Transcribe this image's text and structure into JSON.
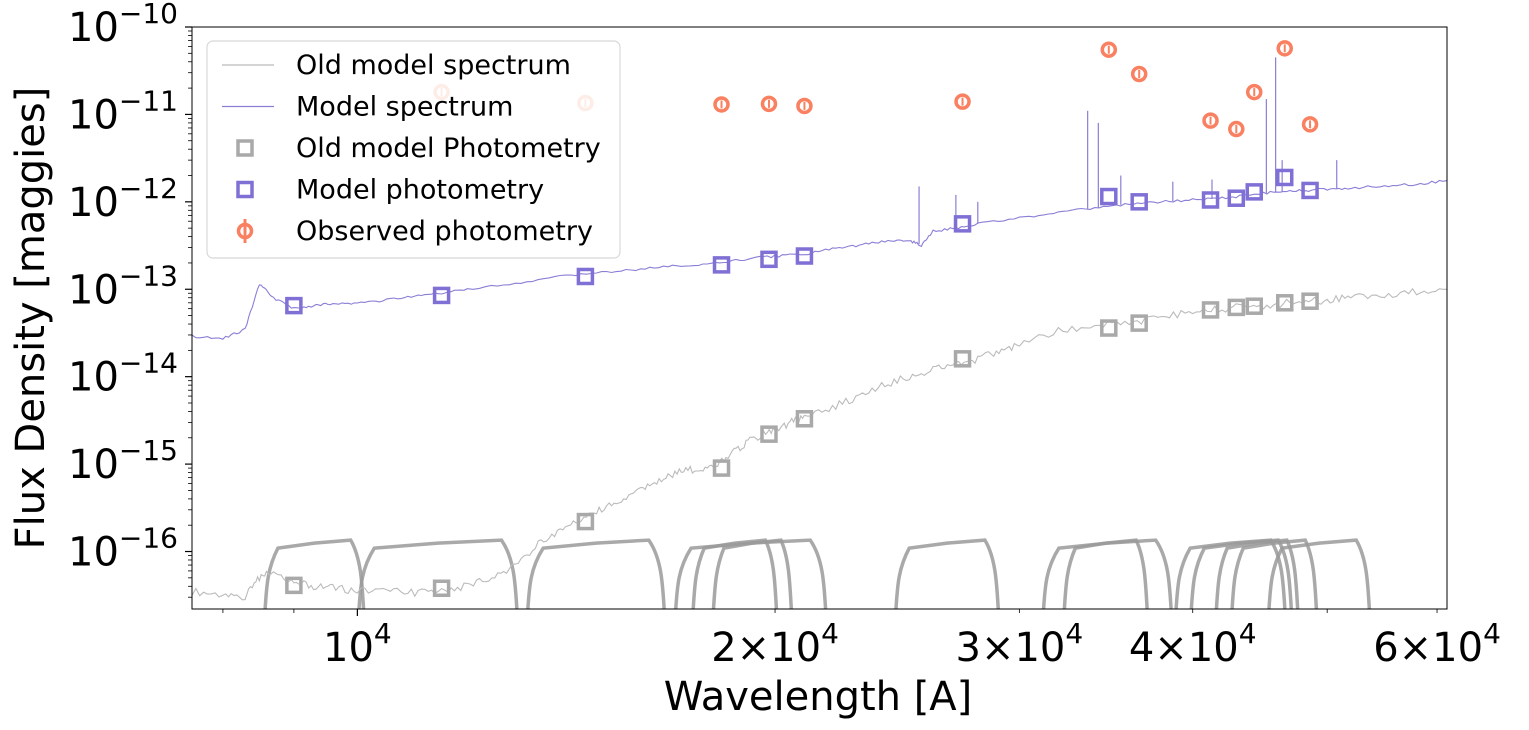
{
  "chart_data": {
    "type": "scatter",
    "xlabel": "Wavelength [A]",
    "ylabel": "Flux Density [maggies]",
    "xscale": "log",
    "yscale": "log",
    "xlim": [
      7600,
      61000
    ],
    "ylim": [
      2.2e-17,
      1e-10
    ],
    "x_ticks": [
      {
        "value": 10000,
        "base": "10",
        "exp": "4",
        "mult": ""
      },
      {
        "value": 20000,
        "base": "10",
        "exp": "4",
        "mult": "2"
      },
      {
        "value": 30000,
        "base": "10",
        "exp": "4",
        "mult": "3"
      },
      {
        "value": 40000,
        "base": "10",
        "exp": "4",
        "mult": "4"
      },
      {
        "value": 60000,
        "base": "10",
        "exp": "4",
        "mult": "6"
      }
    ],
    "y_ticks": [
      {
        "value": 1e-10,
        "base": "10",
        "exp": "−10"
      },
      {
        "value": 1e-11,
        "base": "10",
        "exp": "−11"
      },
      {
        "value": 1e-12,
        "base": "10",
        "exp": "−12"
      },
      {
        "value": 1e-13,
        "base": "10",
        "exp": "−13"
      },
      {
        "value": 1e-14,
        "base": "10",
        "exp": "−14"
      },
      {
        "value": 1e-15,
        "base": "10",
        "exp": "−15"
      },
      {
        "value": 1e-16,
        "base": "10",
        "exp": "−16"
      }
    ],
    "grid": false,
    "legend_position": "top-left",
    "legend": [
      {
        "label": "Old model spectrum",
        "kind": "line",
        "color": "#bbbbbb"
      },
      {
        "label": "Model spectrum",
        "kind": "line",
        "color": "#8a7fd6"
      },
      {
        "label": "Old model Photometry",
        "kind": "square",
        "color": "#a9a9a9"
      },
      {
        "label": "Model photometry",
        "kind": "square",
        "color": "#7e70d4"
      },
      {
        "label": "Observed photometry",
        "kind": "errcircle",
        "color": "#f98060"
      }
    ],
    "series": [
      {
        "name": "Old model spectrum",
        "kind": "line",
        "color": "#bbbbbb",
        "x": [
          7600,
          8000,
          8300,
          8500,
          8700,
          9000,
          9300,
          9600,
          10000,
          10500,
          11000,
          11500,
          12000,
          12500,
          13000,
          13500,
          14000,
          14500,
          15000,
          15500,
          16000,
          16500,
          17000,
          17500,
          18000,
          18500,
          19000,
          19500,
          20000,
          20500,
          21000,
          22000,
          23000,
          24000,
          25000,
          26000,
          27000,
          28000,
          29000,
          30000,
          32000,
          34000,
          36000,
          38000,
          40000,
          42000,
          44000,
          46000,
          48000,
          50000,
          52000,
          55000,
          58000,
          61000
        ],
        "y": [
          3.5e-17,
          3.2e-17,
          3e-17,
          5e-17,
          6e-17,
          4.5e-17,
          4e-17,
          3.8e-17,
          3.6e-17,
          3.5e-17,
          3.4e-17,
          3.6e-17,
          4e-17,
          5e-17,
          7e-17,
          1.2e-16,
          1.8e-16,
          2.3e-16,
          3e-16,
          3.8e-16,
          5e-16,
          6.5e-16,
          8e-16,
          8.8e-16,
          9e-16,
          1.2e-15,
          1.7e-15,
          2.1e-15,
          2.4e-15,
          3e-15,
          3.3e-15,
          4.5e-15,
          6e-15,
          8e-15,
          1e-14,
          1.2e-14,
          1.4e-14,
          1.6e-14,
          1.9e-14,
          2.4e-14,
          3.3e-14,
          3.8e-14,
          4.2e-14,
          4.8e-14,
          5.5e-14,
          6e-14,
          6.4e-14,
          6.8e-14,
          7.2e-14,
          7.6e-14,
          8.2e-14,
          8.8e-14,
          9.4e-14,
          1e-13
        ]
      },
      {
        "name": "Model spectrum",
        "kind": "line",
        "color": "#8a7fd6",
        "x": [
          7600,
          8000,
          8300,
          8500,
          8700,
          9000,
          9300,
          9600,
          10000,
          10500,
          11000,
          11500,
          12000,
          13000,
          14000,
          15000,
          16000,
          17000,
          18000,
          19000,
          20000,
          21000,
          22000,
          23000,
          24000,
          25000,
          25500,
          26000,
          27000,
          28000,
          30000,
          32000,
          34000,
          36000,
          38000,
          40000,
          42000,
          44000,
          46000,
          48000,
          50000,
          52000,
          55000,
          58000,
          61000
        ],
        "y": [
          2.9e-14,
          2.7e-14,
          3.5e-14,
          1.15e-13,
          8e-14,
          6e-14,
          6.5e-14,
          6.8e-14,
          7e-14,
          7.5e-14,
          8.5e-14,
          9e-14,
          1e-13,
          1.15e-13,
          1.4e-13,
          1.55e-13,
          1.7e-13,
          1.85e-13,
          1.95e-13,
          2.2e-13,
          2.4e-13,
          2.5e-13,
          2.9e-13,
          3.2e-13,
          3.5e-13,
          3.6e-13,
          3.2e-13,
          4.6e-13,
          5e-13,
          5.6e-13,
          6.5e-13,
          7.5e-13,
          8.5e-13,
          9.5e-13,
          1e-12,
          1.05e-12,
          1.1e-12,
          1.2e-12,
          1.3e-12,
          1.35e-12,
          1.4e-12,
          1.45e-12,
          1.5e-12,
          1.6e-12,
          1.75e-12
        ]
      },
      {
        "name": "Old model Photometry",
        "kind": "square",
        "color": "#a9a9a9",
        "x": [
          9000,
          11500,
          14600,
          18300,
          19800,
          21000,
          27300,
          34800,
          36600,
          41200,
          43000,
          44300,
          46600,
          48600
        ],
        "y": [
          4.1e-17,
          3.8e-17,
          2.2e-16,
          9e-16,
          2.2e-15,
          3.3e-15,
          1.6e-14,
          3.6e-14,
          4.1e-14,
          5.8e-14,
          6.2e-14,
          6.4e-14,
          7e-14,
          7.3e-14
        ]
      },
      {
        "name": "Model photometry",
        "kind": "square",
        "color": "#7e70d4",
        "x": [
          9000,
          11500,
          14600,
          18300,
          19800,
          21000,
          27300,
          34800,
          36600,
          41200,
          43000,
          44300,
          46600,
          48600
        ],
        "y": [
          6.5e-14,
          8.5e-14,
          1.4e-13,
          1.9e-13,
          2.2e-13,
          2.4e-13,
          5.6e-13,
          1.15e-12,
          1e-12,
          1.05e-12,
          1.1e-12,
          1.3e-12,
          1.9e-12,
          1.35e-12
        ]
      },
      {
        "name": "Observed photometry",
        "kind": "errcircle",
        "color": "#f98060",
        "x": [
          11500,
          14600,
          18300,
          19800,
          21000,
          27300,
          34800,
          36600,
          41200,
          43000,
          44300,
          46600,
          48600
        ],
        "y": [
          1.8e-11,
          1.35e-11,
          1.3e-11,
          1.32e-11,
          1.25e-11,
          1.4e-11,
          5.5e-11,
          2.9e-11,
          8.5e-12,
          6.8e-12,
          1.8e-11,
          5.7e-11,
          7.7e-12
        ]
      }
    ],
    "filter_curves": {
      "color": "#9a9a9a",
      "y_level": 1.35e-16,
      "bands": [
        [
          8600,
          10080
        ],
        [
          10050,
          13000
        ],
        [
          13300,
          16600
        ],
        [
          17000,
          21700
        ],
        [
          17500,
          20000
        ],
        [
          18100,
          20500
        ],
        [
          24500,
          28900
        ],
        [
          31300,
          38500
        ],
        [
          32400,
          37000
        ],
        [
          39000,
          46500
        ],
        [
          40000,
          47000
        ],
        [
          41700,
          47500
        ],
        [
          42800,
          49000
        ],
        [
          45500,
          53500
        ]
      ]
    },
    "emission_lines": [
      {
        "x": 25400,
        "peak": 1.5e-12
      },
      {
        "x": 27000,
        "peak": 1.2e-12
      },
      {
        "x": 28000,
        "peak": 1e-12
      },
      {
        "x": 33600,
        "peak": 1.1e-11
      },
      {
        "x": 34200,
        "peak": 8e-12
      },
      {
        "x": 35500,
        "peak": 2e-12
      },
      {
        "x": 38700,
        "peak": 1.7e-12
      },
      {
        "x": 41300,
        "peak": 1.8e-12
      },
      {
        "x": 45200,
        "peak": 1.5e-11
      },
      {
        "x": 45900,
        "peak": 4.5e-11
      },
      {
        "x": 46400,
        "peak": 3e-12
      },
      {
        "x": 50800,
        "peak": 3e-12
      }
    ]
  }
}
